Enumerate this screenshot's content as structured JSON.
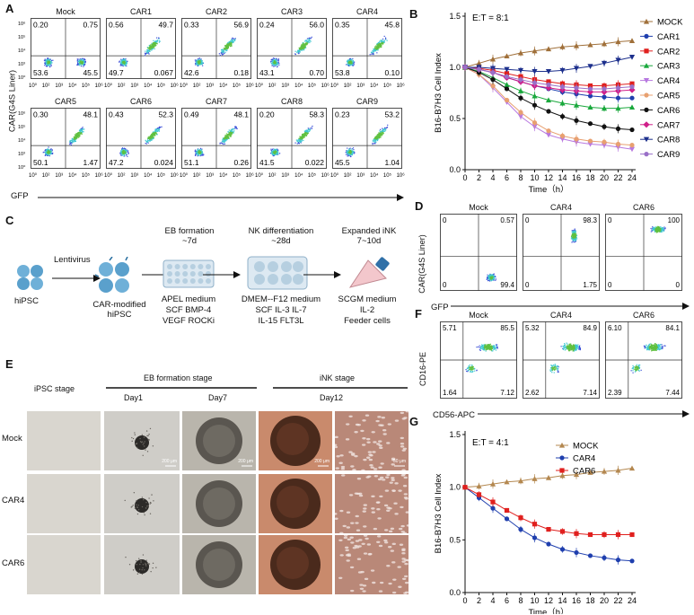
{
  "panel_letters": {
    "a": "A",
    "b": "B",
    "c": "C",
    "d": "D",
    "e": "E",
    "f": "F",
    "g": "G"
  },
  "colors": {
    "mock": "#a0703a",
    "car1": "#1f3fae",
    "car2": "#e0201e",
    "car3": "#19a83c",
    "car4": "#b878e0",
    "car5": "#e8a070",
    "car6": "#111111",
    "car7": "#d0208a",
    "car8": "#1c2f8c",
    "car9": "#9a70c8",
    "scatter_blue": "#3a4fd8",
    "scatter_cyan": "#40c8d0",
    "scatter_green": "#60c040"
  },
  "panelA": {
    "y_label": "CAR(G4S Liner)",
    "x_label": "GFP",
    "y_ticks": [
      "10⁶",
      "10⁵",
      "10⁴",
      "10³",
      "10⁰"
    ],
    "x_ticks": [
      "10⁰",
      "10²",
      "10³",
      "10⁴",
      "10⁵",
      "10⁶"
    ],
    "plots": [
      {
        "title": "Mock",
        "ul": "0.20",
        "ur": "0.75",
        "ll": "53.6",
        "lr": "45.5"
      },
      {
        "title": "CAR1",
        "ul": "0.56",
        "ur": "49.7",
        "ll": "49.7",
        "lr": "0.067"
      },
      {
        "title": "CAR2",
        "ul": "0.33",
        "ur": "56.9",
        "ll": "42.6",
        "lr": "0.18"
      },
      {
        "title": "CAR3",
        "ul": "0.24",
        "ur": "56.0",
        "ll": "43.1",
        "lr": "0.70"
      },
      {
        "title": "CAR4",
        "ul": "0.35",
        "ur": "45.8",
        "ll": "53.8",
        "lr": "0.10"
      },
      {
        "title": "CAR5",
        "ul": "0.30",
        "ur": "48.1",
        "ll": "50.1",
        "lr": "1.47"
      },
      {
        "title": "CAR6",
        "ul": "0.43",
        "ur": "52.3",
        "ll": "47.2",
        "lr": "0.024"
      },
      {
        "title": "CAR7",
        "ul": "0.49",
        "ur": "48.1",
        "ll": "51.1",
        "lr": "0.26"
      },
      {
        "title": "CAR8",
        "ul": "0.20",
        "ur": "58.3",
        "ll": "41.5",
        "lr": "0.022"
      },
      {
        "title": "CAR9",
        "ul": "0.23",
        "ur": "53.2",
        "ll": "45.5",
        "lr": "1.04"
      }
    ]
  },
  "panelD": {
    "y_label": "CAR(G4S Liner)",
    "x_label": "GFP",
    "plots": [
      {
        "title": "Mock",
        "ul": "0",
        "ur": "0.57",
        "ll": "0",
        "lr": "99.4"
      },
      {
        "title": "CAR4",
        "ul": "0",
        "ur": "98.3",
        "ll": "0",
        "lr": "1.75"
      },
      {
        "title": "CAR6",
        "ul": "0",
        "ur": "100",
        "ll": "0",
        "lr": "0"
      }
    ]
  },
  "panelF": {
    "y_label": "CD16-PE",
    "x_label": "CD56-APC",
    "plots": [
      {
        "title": "Mock",
        "ul": "5.71",
        "ur": "85.5",
        "ll": "1.64",
        "lr": "7.12"
      },
      {
        "title": "CAR4",
        "ul": "5.32",
        "ur": "84.9",
        "ll": "2.62",
        "lr": "7.14"
      },
      {
        "title": "CAR6",
        "ul": "6.10",
        "ur": "84.1",
        "ll": "2.39",
        "lr": "7.44"
      }
    ]
  },
  "panelC": {
    "hipsc": "hiPSC",
    "lentivirus": "Lentivirus",
    "car_modified_1": "CAR-modified",
    "car_modified_2": "hiPSC",
    "eb_title_1": "EB formation",
    "eb_title_2": "~7d",
    "nk_title_1": "NK differentiation",
    "nk_title_2": "~28d",
    "ink_title_1": "Expanded iNK",
    "ink_title_2": "7~10d",
    "eb_media": [
      "APEL medium",
      "SCF BMP-4",
      "VEGF ROCKi"
    ],
    "nk_media": [
      "DMEM--F12 medium",
      "SCF IL-3 IL-7",
      "IL-15 FLT3L"
    ],
    "ink_media": [
      "SCGM medium",
      "IL-2",
      "Feeder cells"
    ]
  },
  "panelE": {
    "ipsc_stage": "iPSC stage",
    "eb_stage": "EB formation stage",
    "ink_stage": "iNK  stage",
    "day1": "Day1",
    "day7": "Day7",
    "day12": "Day12",
    "rows": [
      "Mock",
      "CAR4",
      "CAR6"
    ],
    "scale_200": "200 μm",
    "scale_50": "50 μm"
  },
  "chart_data": [
    {
      "id": "B",
      "type": "line",
      "title": "E:T = 8:1",
      "xlabel": "Time（h）",
      "ylabel": "B16-B7H3 Cell Index",
      "x": [
        0,
        2,
        4,
        6,
        8,
        10,
        12,
        14,
        16,
        18,
        20,
        22,
        24
      ],
      "xlim": [
        0,
        24
      ],
      "ylim": [
        0,
        1.5
      ],
      "yticks": [
        "0.0",
        "0.5",
        "1.0",
        "1.5"
      ],
      "series": [
        {
          "name": "MOCK",
          "color": "#a0703a",
          "marker": "tri-up",
          "values": [
            1.0,
            1.04,
            1.08,
            1.11,
            1.14,
            1.16,
            1.18,
            1.2,
            1.21,
            1.22,
            1.23,
            1.25,
            1.26
          ]
        },
        {
          "name": "CAR1",
          "color": "#1f3fae",
          "marker": "circle",
          "values": [
            1.0,
            0.98,
            0.95,
            0.9,
            0.86,
            0.82,
            0.79,
            0.76,
            0.74,
            0.72,
            0.71,
            0.7,
            0.7
          ]
        },
        {
          "name": "CAR2",
          "color": "#e0201e",
          "marker": "square",
          "values": [
            1.0,
            0.99,
            0.97,
            0.94,
            0.91,
            0.88,
            0.86,
            0.84,
            0.83,
            0.82,
            0.82,
            0.83,
            0.84
          ]
        },
        {
          "name": "CAR3",
          "color": "#19a83c",
          "marker": "tri-up",
          "values": [
            1.0,
            0.96,
            0.9,
            0.83,
            0.77,
            0.72,
            0.68,
            0.65,
            0.63,
            0.61,
            0.6,
            0.6,
            0.61
          ]
        },
        {
          "name": "CAR4",
          "color": "#b878e0",
          "marker": "tri-down",
          "values": [
            1.0,
            0.93,
            0.8,
            0.66,
            0.52,
            0.42,
            0.34,
            0.3,
            0.27,
            0.25,
            0.24,
            0.22,
            0.2
          ]
        },
        {
          "name": "CAR5",
          "color": "#e8a070",
          "marker": "circle",
          "values": [
            1.0,
            0.93,
            0.82,
            0.68,
            0.56,
            0.46,
            0.38,
            0.33,
            0.3,
            0.28,
            0.27,
            0.25,
            0.24
          ]
        },
        {
          "name": "CAR6",
          "color": "#111111",
          "marker": "circle",
          "values": [
            1.0,
            0.95,
            0.88,
            0.79,
            0.7,
            0.63,
            0.57,
            0.52,
            0.48,
            0.45,
            0.42,
            0.4,
            0.39
          ]
        },
        {
          "name": "CAR7",
          "color": "#d0208a",
          "marker": "diamond",
          "values": [
            1.0,
            0.98,
            0.95,
            0.9,
            0.86,
            0.82,
            0.8,
            0.78,
            0.77,
            0.76,
            0.76,
            0.77,
            0.78
          ]
        },
        {
          "name": "CAR8",
          "color": "#1c2f8c",
          "marker": "tri-down",
          "values": [
            1.0,
            1.0,
            0.99,
            0.98,
            0.97,
            0.96,
            0.96,
            0.97,
            0.99,
            1.01,
            1.04,
            1.07,
            1.1
          ]
        },
        {
          "name": "CAR9",
          "color": "#9a70c8",
          "marker": "circle",
          "values": [
            1.0,
            0.98,
            0.95,
            0.91,
            0.88,
            0.85,
            0.83,
            0.81,
            0.8,
            0.79,
            0.79,
            0.8,
            0.81
          ]
        }
      ]
    },
    {
      "id": "G",
      "type": "line",
      "title": "E:T = 4:1",
      "xlabel": "Time（h）",
      "ylabel": "B16-B7H3 Cell Index",
      "x": [
        0,
        2,
        4,
        6,
        8,
        10,
        12,
        14,
        16,
        18,
        20,
        22,
        24
      ],
      "xlim": [
        0,
        24
      ],
      "ylim": [
        0,
        1.5
      ],
      "yticks": [
        "0.0",
        "0.5",
        "1.0",
        "1.5"
      ],
      "series": [
        {
          "name": "MOCK",
          "color": "#b48850",
          "marker": "tri-up",
          "values": [
            1.0,
            1.01,
            1.03,
            1.05,
            1.06,
            1.08,
            1.09,
            1.11,
            1.12,
            1.14,
            1.15,
            1.16,
            1.18
          ]
        },
        {
          "name": "CAR4",
          "color": "#1f3fae",
          "marker": "circle",
          "values": [
            1.0,
            0.9,
            0.8,
            0.7,
            0.6,
            0.52,
            0.46,
            0.41,
            0.38,
            0.35,
            0.33,
            0.31,
            0.3
          ]
        },
        {
          "name": "CAR6",
          "color": "#e0201e",
          "marker": "square",
          "values": [
            1.0,
            0.93,
            0.86,
            0.78,
            0.71,
            0.65,
            0.6,
            0.58,
            0.56,
            0.55,
            0.55,
            0.55,
            0.55
          ]
        }
      ]
    }
  ]
}
